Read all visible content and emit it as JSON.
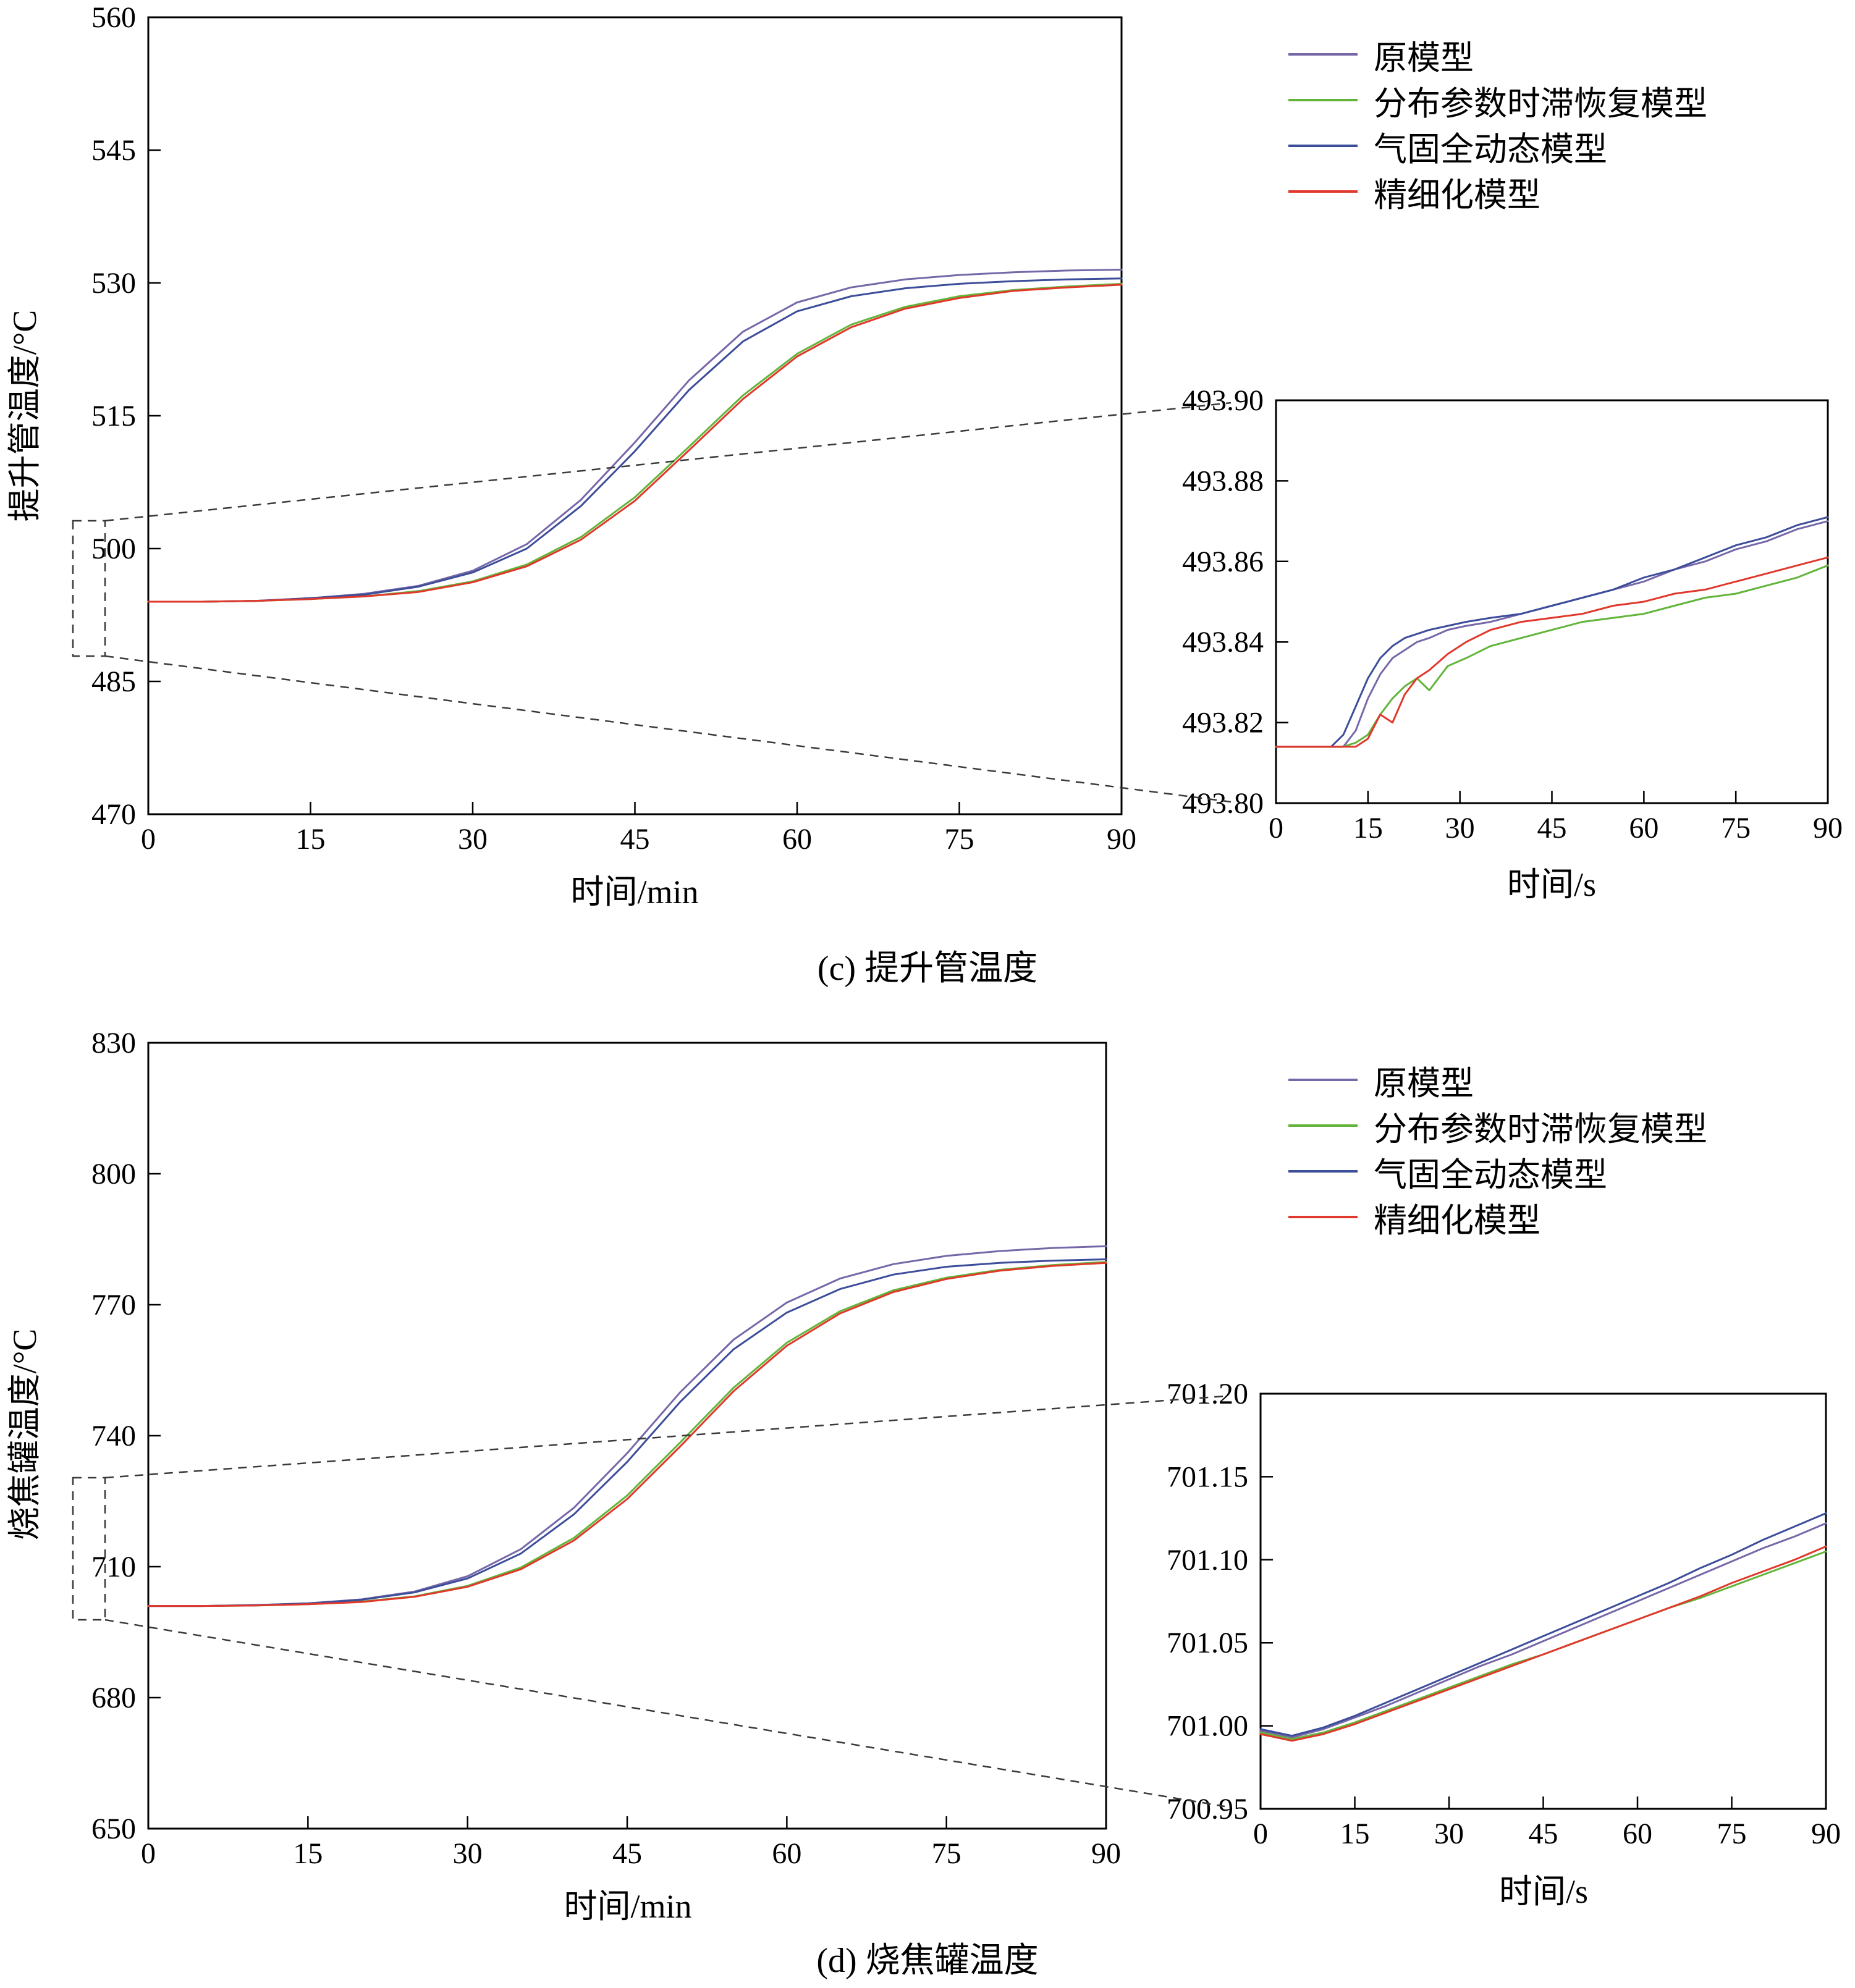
{
  "figure": {
    "background": "#ffffff",
    "panel_c_caption": "(c) 提升管温度",
    "panel_d_caption": "(d) 烧焦罐温度"
  },
  "legend": {
    "position": "top-right-outside",
    "items": [
      {
        "label": "原模型",
        "color": "#7668a8"
      },
      {
        "label": "分布参数时滞恢复模型",
        "color": "#62b53a"
      },
      {
        "label": "气固全动态模型",
        "color": "#3c4d9a"
      },
      {
        "label": "精细化模型",
        "color": "#e0392c"
      }
    ]
  },
  "panels": [
    {
      "caption": "(c) 提升管温度"
    },
    {
      "caption": "(d) 烧焦罐温度"
    }
  ],
  "chart_data": [
    {
      "id": "c-main",
      "type": "line",
      "title": "",
      "xlabel": "时间/min",
      "ylabel": "提升管温度/°C",
      "xlim": [
        0,
        90
      ],
      "ylim": [
        470,
        560
      ],
      "grid": false,
      "xticks": [
        0,
        15,
        30,
        45,
        60,
        75,
        90
      ],
      "xtick_labels": [
        "0",
        "15",
        "30",
        "45",
        "60",
        "75",
        "90"
      ],
      "yticks": [
        470,
        485,
        500,
        515,
        530,
        545,
        560
      ],
      "ytick_labels": [
        "470",
        "485",
        "500",
        "515",
        "530",
        "545",
        "560"
      ],
      "x": [
        0,
        5,
        10,
        15,
        20,
        25,
        30,
        35,
        40,
        45,
        50,
        55,
        60,
        65,
        70,
        75,
        80,
        85,
        90
      ],
      "series": [
        {
          "name": "原模型",
          "color": "#7668a8",
          "values": [
            494.0,
            494.0,
            494.1,
            494.4,
            494.9,
            495.8,
            497.5,
            500.5,
            505.5,
            512.0,
            519.0,
            524.5,
            527.8,
            529.5,
            530.4,
            530.9,
            531.2,
            531.4,
            531.5
          ]
        },
        {
          "name": "分布参数时滞恢复模型",
          "color": "#62b53a",
          "values": [
            494.0,
            494.0,
            494.1,
            494.3,
            494.6,
            495.2,
            496.3,
            498.2,
            501.3,
            505.8,
            511.5,
            517.3,
            522.0,
            525.3,
            527.3,
            528.5,
            529.2,
            529.6,
            529.9
          ]
        },
        {
          "name": "气固全动态模型",
          "color": "#3c4d9a",
          "values": [
            494.0,
            494.0,
            494.1,
            494.4,
            494.8,
            495.7,
            497.3,
            500.0,
            504.8,
            511.0,
            517.9,
            523.4,
            526.8,
            528.5,
            529.4,
            529.9,
            530.2,
            530.4,
            530.5
          ]
        },
        {
          "name": "精细化模型",
          "color": "#e0392c",
          "values": [
            494.0,
            494.0,
            494.1,
            494.3,
            494.6,
            495.1,
            496.2,
            498.0,
            501.0,
            505.4,
            511.1,
            516.9,
            521.7,
            525.0,
            527.1,
            528.3,
            529.1,
            529.5,
            529.8
          ]
        }
      ]
    },
    {
      "id": "c-inset",
      "type": "line",
      "title": "",
      "xlabel": "时间/s",
      "ylabel": "",
      "xlim": [
        0,
        90
      ],
      "ylim": [
        493.8,
        493.9
      ],
      "grid": false,
      "xticks": [
        0,
        15,
        30,
        45,
        60,
        75,
        90
      ],
      "xtick_labels": [
        "0",
        "15",
        "30",
        "45",
        "60",
        "75",
        "90"
      ],
      "yticks": [
        493.8,
        493.82,
        493.84,
        493.86,
        493.88,
        493.9
      ],
      "ytick_labels": [
        "493.80",
        "493.82",
        "493.84",
        "493.86",
        "493.88",
        "493.90"
      ],
      "x": [
        0,
        3,
        6,
        9,
        11,
        13,
        15,
        17,
        19,
        21,
        23,
        25,
        28,
        31,
        35,
        40,
        45,
        50,
        55,
        60,
        65,
        70,
        75,
        80,
        85,
        90
      ],
      "series": [
        {
          "name": "原模型",
          "color": "#7668a8",
          "values": [
            493.814,
            493.814,
            493.814,
            493.814,
            493.814,
            493.818,
            493.826,
            493.832,
            493.836,
            493.838,
            493.84,
            493.841,
            493.843,
            493.844,
            493.845,
            493.847,
            493.849,
            493.851,
            493.853,
            493.855,
            493.858,
            493.86,
            493.863,
            493.865,
            493.868,
            493.87
          ]
        },
        {
          "name": "分布参数时滞恢复模型",
          "color": "#62b53a",
          "values": [
            493.814,
            493.814,
            493.814,
            493.814,
            493.814,
            493.815,
            493.817,
            493.822,
            493.826,
            493.829,
            493.831,
            493.828,
            493.834,
            493.836,
            493.839,
            493.841,
            493.843,
            493.845,
            493.846,
            493.847,
            493.849,
            493.851,
            493.852,
            493.854,
            493.856,
            493.859
          ]
        },
        {
          "name": "气固全动态模型",
          "color": "#3c4d9a",
          "values": [
            493.814,
            493.814,
            493.814,
            493.814,
            493.817,
            493.824,
            493.831,
            493.836,
            493.839,
            493.841,
            493.842,
            493.843,
            493.844,
            493.845,
            493.846,
            493.847,
            493.849,
            493.851,
            493.853,
            493.856,
            493.858,
            493.861,
            493.864,
            493.866,
            493.869,
            493.871
          ]
        },
        {
          "name": "精细化模型",
          "color": "#e0392c",
          "values": [
            493.814,
            493.814,
            493.814,
            493.814,
            493.814,
            493.814,
            493.816,
            493.822,
            493.82,
            493.827,
            493.831,
            493.833,
            493.837,
            493.84,
            493.843,
            493.845,
            493.846,
            493.847,
            493.849,
            493.85,
            493.852,
            493.853,
            493.855,
            493.857,
            493.859,
            493.861
          ]
        }
      ]
    },
    {
      "id": "d-main",
      "type": "line",
      "title": "",
      "xlabel": "时间/min",
      "ylabel": "烧焦罐温度/°C",
      "xlim": [
        0,
        90
      ],
      "ylim": [
        650,
        830
      ],
      "grid": false,
      "xticks": [
        0,
        15,
        30,
        45,
        60,
        75,
        90
      ],
      "xtick_labels": [
        "0",
        "15",
        "30",
        "45",
        "60",
        "75",
        "90"
      ],
      "yticks": [
        650,
        680,
        710,
        740,
        770,
        800,
        830
      ],
      "ytick_labels": [
        "650",
        "680",
        "710",
        "740",
        "770",
        "800",
        "830"
      ],
      "x": [
        0,
        5,
        10,
        15,
        20,
        25,
        30,
        35,
        40,
        45,
        50,
        55,
        60,
        65,
        70,
        75,
        80,
        85,
        90
      ],
      "series": [
        {
          "name": "原模型",
          "color": "#7668a8",
          "values": [
            701.0,
            701.0,
            701.2,
            701.6,
            702.5,
            704.3,
            707.8,
            714.0,
            723.5,
            736.0,
            750.0,
            762.0,
            770.5,
            776.0,
            779.3,
            781.2,
            782.3,
            783.0,
            783.4
          ]
        },
        {
          "name": "分布参数时滞恢复模型",
          "color": "#62b53a",
          "values": [
            701.0,
            701.0,
            701.1,
            701.4,
            702.0,
            703.2,
            705.6,
            709.8,
            716.6,
            726.3,
            738.5,
            751.0,
            761.3,
            768.5,
            773.3,
            776.2,
            778.0,
            779.1,
            779.8
          ]
        },
        {
          "name": "气固全动态模型",
          "color": "#3c4d9a",
          "values": [
            701.0,
            701.0,
            701.2,
            701.6,
            702.4,
            704.1,
            707.3,
            713.0,
            722.0,
            734.0,
            747.8,
            759.8,
            768.2,
            773.6,
            776.9,
            778.7,
            779.6,
            780.1,
            780.4
          ]
        },
        {
          "name": "精细化模型",
          "color": "#e0392c",
          "values": [
            701.0,
            701.0,
            701.1,
            701.4,
            701.9,
            703.1,
            705.4,
            709.4,
            716.0,
            725.5,
            737.6,
            750.2,
            760.6,
            768.0,
            772.9,
            775.9,
            777.8,
            778.9,
            779.6
          ]
        }
      ]
    },
    {
      "id": "d-inset",
      "type": "line",
      "title": "",
      "xlabel": "时间/s",
      "ylabel": "",
      "xlim": [
        0,
        90
      ],
      "ylim": [
        700.95,
        701.2
      ],
      "grid": false,
      "xticks": [
        0,
        15,
        30,
        45,
        60,
        75,
        90
      ],
      "xtick_labels": [
        "0",
        "15",
        "30",
        "45",
        "60",
        "75",
        "90"
      ],
      "yticks": [
        700.95,
        701.0,
        701.05,
        701.1,
        701.15,
        701.2
      ],
      "ytick_labels": [
        "700.95",
        "701.00",
        "701.05",
        "701.10",
        "701.15",
        "701.20"
      ],
      "x": [
        0,
        5,
        10,
        15,
        20,
        25,
        30,
        35,
        40,
        45,
        50,
        55,
        60,
        65,
        70,
        75,
        80,
        85,
        90
      ],
      "series": [
        {
          "name": "原模型",
          "color": "#7668a8",
          "values": [
            700.997,
            700.993,
            700.998,
            701.005,
            701.012,
            701.02,
            701.028,
            701.036,
            701.043,
            701.051,
            701.059,
            701.067,
            701.075,
            701.083,
            701.091,
            701.099,
            701.107,
            701.114,
            701.122
          ]
        },
        {
          "name": "分布参数时滞恢复模型",
          "color": "#62b53a",
          "values": [
            700.996,
            700.992,
            700.996,
            701.002,
            701.009,
            701.016,
            701.023,
            701.03,
            701.037,
            701.043,
            701.05,
            701.057,
            701.064,
            701.071,
            701.077,
            701.084,
            701.091,
            701.098,
            701.105
          ]
        },
        {
          "name": "气固全动态模型",
          "color": "#3c4d9a",
          "values": [
            700.998,
            700.994,
            700.999,
            701.006,
            701.014,
            701.022,
            701.03,
            701.038,
            701.046,
            701.054,
            701.062,
            701.07,
            701.078,
            701.086,
            701.095,
            701.103,
            701.112,
            701.12,
            701.128
          ]
        },
        {
          "name": "精细化模型",
          "color": "#e0392c",
          "values": [
            700.995,
            700.991,
            700.995,
            701.001,
            701.008,
            701.015,
            701.022,
            701.029,
            701.036,
            701.043,
            701.05,
            701.057,
            701.064,
            701.071,
            701.078,
            701.086,
            701.093,
            701.1,
            701.108
          ]
        }
      ]
    }
  ]
}
